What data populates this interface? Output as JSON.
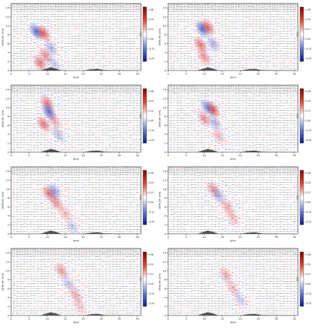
{
  "axis": {
    "ylabel": "Altitude (km)",
    "xlabel": "(km)",
    "x_ticks": [
      "0",
      "5",
      "10",
      "15",
      "20",
      "25",
      "30",
      "35"
    ],
    "y_ticks": [
      "0",
      "2",
      "4",
      "6",
      "8",
      "10",
      "12",
      "14"
    ],
    "xlim": [
      0,
      36
    ],
    "ylim": [
      0,
      15
    ]
  },
  "colorbar_label": "m/s",
  "colors": {
    "positive": "#d62728",
    "negative": "#1f3fbf",
    "terrain": "#555555",
    "vector": "#333333"
  },
  "chart_data": [
    {
      "type": "heatmap",
      "colorbar_ticks": [
        "0.38",
        "0.25",
        "0.12",
        "0.00",
        "-0.12",
        "-0.25"
      ],
      "cells": [
        {
          "x": 7,
          "y": 8.7,
          "v": -0.3
        },
        {
          "x": 9,
          "y": 8.3,
          "v": 0.3
        },
        {
          "x": 8,
          "y": 1.7,
          "v": 0.25
        },
        {
          "x": 9.5,
          "y": 3.3,
          "v": 0.2
        },
        {
          "x": 11,
          "y": 5,
          "v": -0.15
        },
        {
          "x": 12,
          "y": 1.5,
          "v": -0.1
        }
      ]
    },
    {
      "type": "heatmap",
      "colorbar_ticks": [
        "0.38",
        "0.25",
        "0.12",
        "0.00",
        "-0.12",
        "-0.25"
      ],
      "cells": [
        {
          "x": 9.5,
          "y": 9.3,
          "v": -0.3
        },
        {
          "x": 11,
          "y": 9.7,
          "v": 0.28
        },
        {
          "x": 9,
          "y": 5.7,
          "v": 0.25
        },
        {
          "x": 10,
          "y": 3,
          "v": 0.2
        },
        {
          "x": 12.5,
          "y": 6,
          "v": -0.15
        }
      ]
    },
    {
      "type": "heatmap",
      "colorbar_ticks": [
        "0.38",
        "0.25",
        "0.12",
        "0.00",
        "-0.12",
        "-0.25"
      ],
      "cells": [
        {
          "x": 10,
          "y": 11,
          "v": 0.25
        },
        {
          "x": 10.5,
          "y": 9,
          "v": -0.3
        },
        {
          "x": 9,
          "y": 6.3,
          "v": 0.25
        },
        {
          "x": 12,
          "y": 7,
          "v": 0.15
        },
        {
          "x": 13,
          "y": 4,
          "v": -0.12
        }
      ]
    },
    {
      "type": "heatmap",
      "colorbar_ticks": [
        "0.38",
        "0.25",
        "0.12",
        "0.00",
        "-0.12",
        "-0.25"
      ],
      "cells": [
        {
          "x": 11,
          "y": 10,
          "v": -0.25
        },
        {
          "x": 12.5,
          "y": 9.5,
          "v": 0.3
        },
        {
          "x": 10,
          "y": 7.5,
          "v": 0.2
        },
        {
          "x": 13,
          "y": 6.5,
          "v": -0.15
        },
        {
          "x": 14,
          "y": 3.5,
          "v": 0.12
        }
      ]
    },
    {
      "type": "heatmap",
      "colorbar_ticks": [
        "0.38",
        "0.25",
        "0.12",
        "0.00",
        "-0.12",
        "-0.25"
      ],
      "cells": [
        {
          "x": 10.5,
          "y": 9,
          "v": 0.25
        },
        {
          "x": 12,
          "y": 9.5,
          "v": -0.2
        },
        {
          "x": 12.5,
          "y": 7,
          "v": 0.2
        },
        {
          "x": 15,
          "y": 4.5,
          "v": 0.12
        },
        {
          "x": 17,
          "y": 1.5,
          "v": -0.1
        }
      ]
    },
    {
      "type": "heatmap",
      "colorbar_ticks": [
        "0.38",
        "0.25",
        "0.12",
        "0.00",
        "-0.12",
        "-0.25"
      ],
      "cells": [
        {
          "x": 12.5,
          "y": 10,
          "v": 0.2
        },
        {
          "x": 14,
          "y": 8.5,
          "v": -0.15
        },
        {
          "x": 16.5,
          "y": 6,
          "v": 0.15
        },
        {
          "x": 18,
          "y": 3.5,
          "v": 0.12
        }
      ]
    },
    {
      "type": "heatmap",
      "colorbar_ticks": [
        "0.38",
        "0.25",
        "0.12",
        "0.00",
        "-0.12",
        "-0.25"
      ],
      "cells": [
        {
          "x": 14,
          "y": 10,
          "v": 0.18
        },
        {
          "x": 16,
          "y": 7,
          "v": -0.12
        },
        {
          "x": 18,
          "y": 4.5,
          "v": 0.15
        },
        {
          "x": 19,
          "y": 2,
          "v": 0.1
        }
      ]
    },
    {
      "type": "heatmap",
      "colorbar_ticks": [
        "0.38",
        "0.25",
        "0.12",
        "0.00",
        "-0.12",
        "-0.25"
      ],
      "cells": [
        {
          "x": 16,
          "y": 9,
          "v": 0.15
        },
        {
          "x": 18,
          "y": 6,
          "v": 0.12
        },
        {
          "x": 20,
          "y": 3.5,
          "v": -0.1
        }
      ]
    }
  ]
}
